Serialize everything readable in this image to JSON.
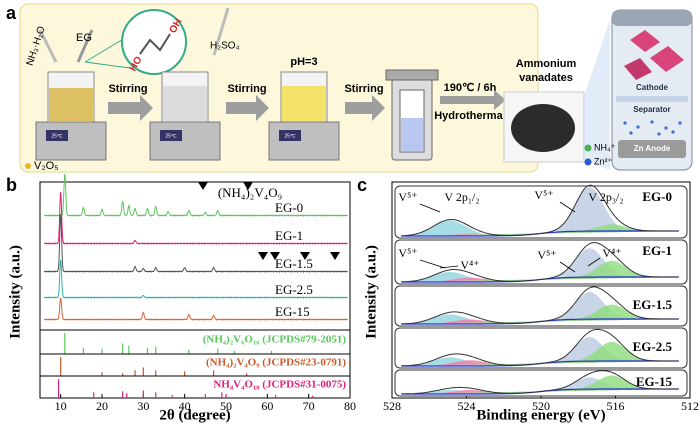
{
  "panel_a": {
    "label": "a",
    "reagents": {
      "ammonia": "NH₃·H₂O",
      "eg": "EG",
      "hydroxyl_left": "HO",
      "hydroxyl_right": "OH",
      "acid": "H₂SO₄",
      "precursor": "V₂O₅"
    },
    "hotplates": [
      "25℃",
      "25℃",
      "25℃"
    ],
    "steps": [
      "Stirring",
      "Stirring",
      "Stirring"
    ],
    "ph": "pH=3",
    "condition": "190℃ / 6h",
    "process": "Hydrothermal",
    "product": [
      "Ammonium",
      "vanadates"
    ],
    "battery": {
      "cathode": "Cathode",
      "separator": "Separator",
      "anode": "Zn Anode"
    },
    "ions": [
      "NH₄⁺",
      "Zn²⁺"
    ]
  },
  "panel_b": {
    "label": "b",
    "y_label": "Intensity (a.u.)",
    "x_label": "2θ (degree)",
    "phase": "(NH₄)₂V₄O₉",
    "xlim": [
      5,
      80
    ],
    "xticks": [
      10,
      20,
      30,
      40,
      50,
      60,
      70,
      80
    ],
    "samples": [
      "EG-0",
      "EG-1",
      "EG-1.5",
      "EG-2.5",
      "EG-15"
    ],
    "references": [
      "(NH₄)₂V₆O₁₆ (JCPDS#79-2051)",
      "(NH₄)₂V₄O₉ (JCPDS#23-0791)",
      "NH₄V₄O₁₀ (JCPDS#31-0075)"
    ]
  },
  "panel_c": {
    "label": "c",
    "y_label": "Intensity (a.u.)",
    "x_label": "Binding energy (eV)",
    "xlim": [
      528,
      512
    ],
    "xticks": [
      528,
      524,
      520,
      516,
      512
    ],
    "samples": [
      "EG-0",
      "EG-1",
      "EG-1.5",
      "EG-2.5",
      "EG-15"
    ],
    "annotations": [
      "V⁵⁺",
      "V 2p₁/₂",
      "V⁵⁺",
      "V 2p₃/₂",
      "V⁵⁺",
      "V⁴⁺",
      "V⁵⁺",
      "V⁴⁺"
    ]
  }
}
